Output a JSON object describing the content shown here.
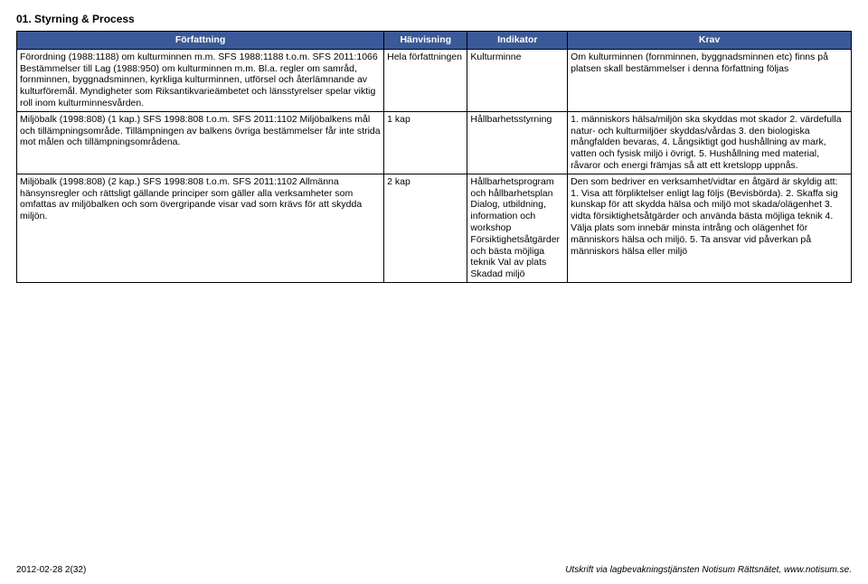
{
  "section_title": "01. Styrning & Process",
  "columns": {
    "forfattning": "Författning",
    "hanvisning": "Hänvisning",
    "indikator": "Indikator",
    "krav": "Krav"
  },
  "rows": [
    {
      "forfattning": "Förordning (1988:1188) om kulturminnen m.m.\nSFS 1988:1188\nt.o.m. SFS 2011:1066\nBestämmelser till Lag (1988:950) om kulturminnen m.m. Bl.a. regler om samråd, fornminnen, byggnadsminnen, kyrkliga kulturminnen, utförsel och återlämnande av kulturföremål. Myndigheter som Riksantikvarieämbetet och länsstyrelser spelar viktig roll inom kulturminnesvården.",
      "hanvisning": "Hela författningen",
      "indikator": "Kulturminne",
      "krav": "Om kulturminnen (fornminnen, byggnadsminnen etc) finns på platsen skall bestämmelser i denna författning följas"
    },
    {
      "forfattning": "Miljöbalk (1998:808) (1 kap.)\nSFS 1998:808\nt.o.m. SFS 2011:1102\nMiljöbalkens mål och tillämpningsområde. Tillämpningen av balkens övriga bestämmelser får inte strida mot målen och tillämpningsområdena.",
      "hanvisning": "1 kap",
      "indikator": "Hållbarhetsstyrning",
      "krav": "1. människors hälsa/miljön ska skyddas mot skador\n2. värdefulla natur- och kulturmiljöer skyddas/vårdas\n3. den biologiska mångfalden bevaras,\n4. Långsiktigt god hushållning av mark, vatten och fysisk miljö i övrigt.\n5. Hushållning med material, råvaror och energi främjas så att ett kretslopp uppnås."
    },
    {
      "forfattning": "Miljöbalk (1998:808) (2 kap.)\nSFS 1998:808\nt.o.m. SFS 2011:1102\nAllmänna hänsynsregler och rättsligt gällande principer som gäller alla verksamheter som omfattas av miljöbalken och som övergripande visar vad som krävs för att skydda miljön.",
      "hanvisning": "2 kap",
      "indikator": "Hållbarhetsprogram och hållbarhetsplan\nDialog, utbildning, information och workshop\nFörsiktighetsåtgärder och bästa möjliga teknik\nVal av plats\nSkadad miljö",
      "krav": "Den som bedriver en verksamhet/vidtar en åtgärd är skyldig att:\n1. Visa att förpliktelser enligt lag följs (Bevisbörda).\n2. Skaffa sig kunskap för att skydda hälsa och miljö mot skada/olägenhet\n3. vidta försiktighetsåtgärder och använda bästa möjliga teknik\n4. Välja plats som innebär minsta intrång och olägenhet för människors hälsa och miljö.\n5. Ta ansvar vid påverkan på människors hälsa eller miljö"
    }
  ],
  "footer": {
    "left": "2012-02-28   2(32)",
    "right": "Utskrift via lagbevakningstjänsten Notisum Rättsnätet, www.notisum.se."
  },
  "colors": {
    "header_bg": "#3b5998",
    "header_fg": "#ffffff",
    "border": "#000000",
    "page_bg": "#ffffff",
    "text": "#000000"
  },
  "widths_pct": {
    "forfattning": 44,
    "hanvisning": 10,
    "indikator": 12,
    "krav": 34
  }
}
